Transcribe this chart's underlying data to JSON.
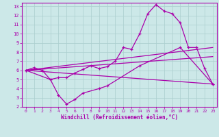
{
  "xlabel": "Windchill (Refroidissement éolien,°C)",
  "bg_color": "#cce8e8",
  "line_color": "#aa00aa",
  "grid_color": "#aacece",
  "xlim": [
    -0.5,
    23.5
  ],
  "ylim": [
    2,
    13.4
  ],
  "xticks": [
    0,
    1,
    2,
    3,
    4,
    5,
    6,
    7,
    8,
    9,
    10,
    11,
    12,
    13,
    14,
    15,
    16,
    17,
    18,
    19,
    20,
    21,
    22,
    23
  ],
  "yticks": [
    2,
    3,
    4,
    5,
    6,
    7,
    8,
    9,
    10,
    11,
    12,
    13
  ],
  "main_x": [
    0,
    1,
    2,
    3,
    4,
    5,
    6,
    7,
    8,
    9,
    10,
    11,
    12,
    13,
    14,
    15,
    16,
    17,
    18,
    19,
    20,
    21,
    22,
    23
  ],
  "main_y": [
    6.0,
    6.3,
    6.0,
    5.0,
    5.2,
    5.2,
    5.7,
    6.1,
    6.5,
    6.2,
    6.4,
    7.0,
    8.5,
    8.3,
    10.0,
    12.2,
    13.2,
    12.5,
    12.2,
    11.2,
    8.5,
    8.5,
    6.2,
    4.5
  ],
  "trend1_x": [
    0,
    23
  ],
  "trend1_y": [
    6.0,
    8.5
  ],
  "trend2_x": [
    0,
    23
  ],
  "trend2_y": [
    6.0,
    7.5
  ],
  "trend3_x": [
    0,
    23
  ],
  "trend3_y": [
    6.0,
    4.5
  ],
  "jagged_x": [
    0,
    3,
    4,
    5,
    6,
    7,
    9,
    10,
    14,
    19,
    23
  ],
  "jagged_y": [
    6.0,
    5.0,
    3.3,
    2.3,
    2.8,
    3.5,
    4.0,
    4.3,
    6.5,
    8.5,
    4.5
  ]
}
